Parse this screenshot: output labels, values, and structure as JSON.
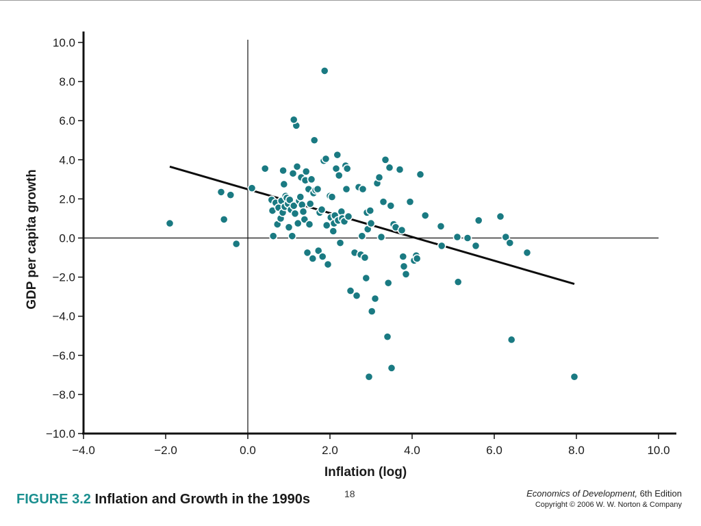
{
  "chart_data": {
    "type": "scatter",
    "title": "Inflation and Growth in the 1990s",
    "figure_label": "FIGURE 3.2",
    "xlabel": "Inflation (log)",
    "ylabel": "GDP per capita growth",
    "xlim": [
      -4.0,
      10.0
    ],
    "ylim": [
      -10.0,
      10.0
    ],
    "x_ticks": [
      "−4.0",
      "−2.0",
      "0.0",
      "2.0",
      "4.0",
      "6.0",
      "8.0",
      "10.0"
    ],
    "y_ticks": [
      "10.0",
      "8.0",
      "6.0",
      "4.0",
      "2.0",
      "0.0",
      "−2.0",
      "−4.0",
      "−6.0",
      "−8.0",
      "−10.0"
    ],
    "grid": false,
    "point_color": "#1a7a82",
    "trend_line": {
      "x": [
        -1.9,
        7.95
      ],
      "y": [
        3.65,
        -2.35
      ]
    },
    "series": [
      {
        "x": [
          -1.9,
          -0.65,
          -0.58,
          -0.42,
          -0.28,
          0.1,
          0.42,
          0.58,
          0.6,
          0.62,
          0.68,
          0.72,
          0.75,
          0.8,
          0.82,
          0.85,
          0.86,
          0.88,
          0.9,
          0.92,
          0.95,
          0.98,
          1.0,
          1.02,
          1.05,
          1.08,
          1.1,
          1.12,
          1.15,
          1.18,
          1.2,
          1.22,
          1.25,
          1.28,
          1.3,
          1.32,
          1.35,
          1.38,
          1.4,
          1.42,
          1.45,
          1.48,
          1.5,
          1.52,
          1.55,
          1.58,
          1.6,
          1.62,
          1.65,
          1.7,
          1.72,
          1.75,
          1.8,
          1.82,
          1.85,
          1.9,
          1.92,
          1.95,
          2.0,
          2.02,
          2.05,
          2.08,
          2.1,
          2.12,
          2.15,
          2.18,
          2.2,
          2.22,
          2.25,
          2.28,
          2.3,
          2.35,
          2.38,
          2.4,
          2.42,
          2.45,
          2.5,
          2.6,
          2.65,
          2.7,
          2.75,
          2.78,
          2.8,
          2.85,
          2.88,
          2.9,
          2.92,
          2.95,
          2.98,
          3.0,
          3.02,
          3.1,
          3.15,
          3.2,
          3.25,
          3.3,
          3.35,
          3.4,
          3.42,
          3.45,
          3.48,
          3.5,
          3.55,
          3.6,
          3.7,
          3.75,
          3.78,
          3.8,
          3.85,
          3.95,
          4.05,
          4.1,
          4.12,
          4.2,
          4.32,
          4.7,
          4.72,
          5.1,
          5.12,
          5.35,
          5.55,
          5.62,
          6.15,
          6.28,
          6.38,
          6.42,
          6.8,
          7.95,
          1.87,
          1.12
        ],
        "y": [
          0.75,
          2.35,
          0.95,
          2.2,
          -0.3,
          2.55,
          3.55,
          1.95,
          1.4,
          0.1,
          1.8,
          0.7,
          1.55,
          1.0,
          1.9,
          1.3,
          3.45,
          2.75,
          1.6,
          2.15,
          2.05,
          1.75,
          0.55,
          1.95,
          1.45,
          0.1,
          3.3,
          1.65,
          1.25,
          5.75,
          3.65,
          0.75,
          1.9,
          2.1,
          3.1,
          1.7,
          1.35,
          0.95,
          2.95,
          3.4,
          -0.75,
          2.5,
          0.7,
          1.75,
          3.0,
          -1.05,
          2.3,
          5.0,
          2.45,
          2.5,
          -0.65,
          1.3,
          1.45,
          -0.95,
          3.95,
          4.05,
          0.65,
          -1.35,
          2.15,
          1.05,
          2.1,
          0.35,
          0.75,
          1.15,
          3.55,
          4.25,
          0.9,
          3.2,
          -0.25,
          1.35,
          1.0,
          0.85,
          3.7,
          2.5,
          3.55,
          1.1,
          -2.7,
          -0.75,
          -2.95,
          2.6,
          -0.85,
          0.1,
          2.5,
          -1.0,
          -2.05,
          1.3,
          0.45,
          -7.1,
          1.4,
          0.75,
          -3.75,
          -3.1,
          2.8,
          3.1,
          0.05,
          1.85,
          4.0,
          -5.05,
          -2.3,
          3.6,
          1.65,
          -6.65,
          0.7,
          0.55,
          3.5,
          0.4,
          -0.95,
          -1.45,
          -1.85,
          1.85,
          -1.15,
          -0.9,
          -1.05,
          3.25,
          1.15,
          0.6,
          -0.4,
          0.05,
          -2.25,
          0.0,
          -0.4,
          0.9,
          1.1,
          0.05,
          -0.25,
          -5.2,
          -0.75,
          -7.1,
          8.55,
          6.05
        ]
      }
    ]
  },
  "caption": {
    "figure_number": "FIGURE 3.2",
    "title": "Inflation and Growth in the 1990s"
  },
  "page_number": "18",
  "credit": {
    "book_title": "Economics of Development,",
    "edition": " 6th Edition",
    "copyright": "Copyright © 2006 W. W. Norton & Company"
  }
}
